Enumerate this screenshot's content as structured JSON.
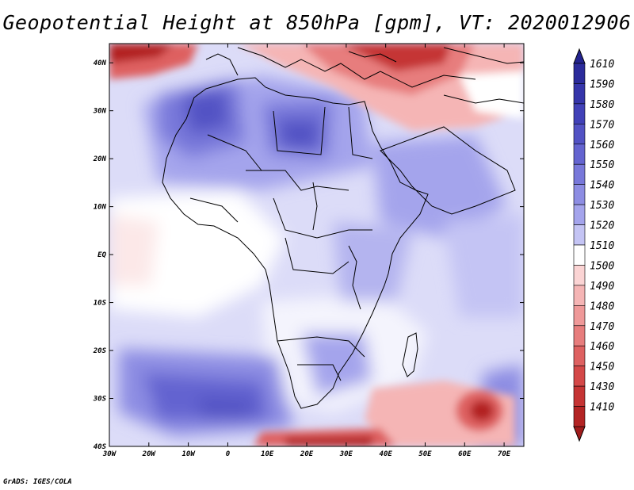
{
  "title": "Geopotential Height at 850hPa [gpm], VT: 2020012906",
  "footer": "GrADS: IGES/COLA",
  "map": {
    "lon_range": [
      -30,
      75
    ],
    "lat_range": [
      -40,
      44
    ],
    "lon_ticks": [
      {
        "value": -30,
        "label": "30W"
      },
      {
        "value": -20,
        "label": "20W"
      },
      {
        "value": -10,
        "label": "10W"
      },
      {
        "value": 0,
        "label": "0"
      },
      {
        "value": 10,
        "label": "10E"
      },
      {
        "value": 20,
        "label": "20E"
      },
      {
        "value": 30,
        "label": "30E"
      },
      {
        "value": 40,
        "label": "40E"
      },
      {
        "value": 50,
        "label": "50E"
      },
      {
        "value": 60,
        "label": "60E"
      },
      {
        "value": 70,
        "label": "70E"
      }
    ],
    "lat_ticks": [
      {
        "value": 40,
        "label": "40N"
      },
      {
        "value": 30,
        "label": "30N"
      },
      {
        "value": 20,
        "label": "20N"
      },
      {
        "value": 10,
        "label": "10N"
      },
      {
        "value": 0,
        "label": "EQ"
      },
      {
        "value": -10,
        "label": "10S"
      },
      {
        "value": -20,
        "label": "20S"
      },
      {
        "value": -30,
        "label": "30S"
      },
      {
        "value": -40,
        "label": "40S"
      }
    ]
  },
  "colorbar": {
    "levels": [
      {
        "label": "1610",
        "color": "#2b2b9b"
      },
      {
        "label": "1590",
        "color": "#3535aa"
      },
      {
        "label": "1580",
        "color": "#4141b8"
      },
      {
        "label": "1570",
        "color": "#5252c4"
      },
      {
        "label": "1560",
        "color": "#6464d0"
      },
      {
        "label": "1550",
        "color": "#7878da"
      },
      {
        "label": "1540",
        "color": "#8d8de3"
      },
      {
        "label": "1530",
        "color": "#a4a4ec"
      },
      {
        "label": "1520",
        "color": "#c4c4f4"
      },
      {
        "label": "1510",
        "color": "#ffffff"
      },
      {
        "label": "1500",
        "color": "#fbd4d4"
      },
      {
        "label": "1490",
        "color": "#f5b5b5"
      },
      {
        "label": "1480",
        "color": "#ef9999"
      },
      {
        "label": "1470",
        "color": "#e77d7d"
      },
      {
        "label": "1460",
        "color": "#de6161"
      },
      {
        "label": "1450",
        "color": "#d44848"
      },
      {
        "label": "1430",
        "color": "#c53434"
      },
      {
        "label": "1410",
        "color": "#b32424"
      }
    ],
    "extend_top_color": "#23238f",
    "extend_bottom_color": "#a01c1c"
  }
}
